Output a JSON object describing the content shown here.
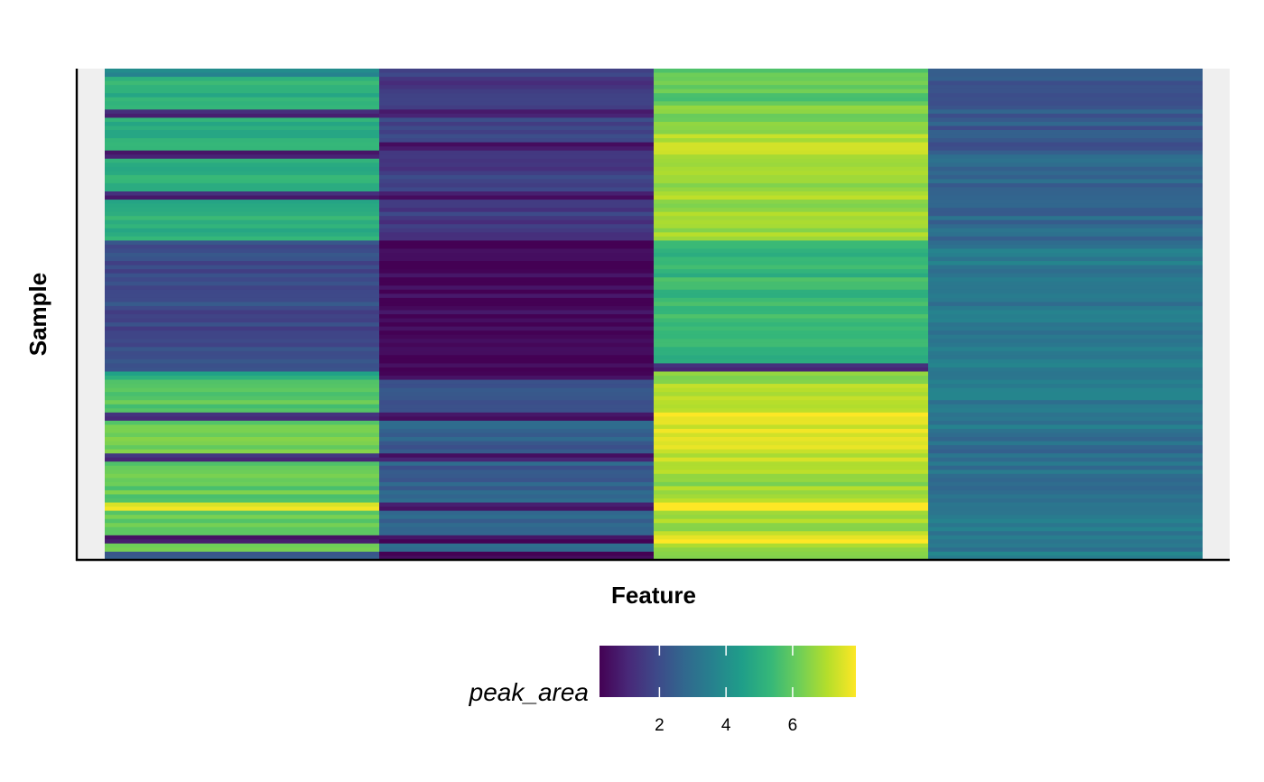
{
  "colors": {
    "panel_background": "#efefef",
    "viridis": [
      "#440154",
      "#482878",
      "#3e4989",
      "#31688e",
      "#26828e",
      "#1f9e89",
      "#35b779",
      "#6ece58",
      "#b5de2b",
      "#fde725"
    ]
  },
  "chart_data": {
    "type": "heatmap",
    "title": "",
    "xlabel": "Feature",
    "ylabel": "Sample",
    "x_ticks_shown": false,
    "y_ticks_shown": false,
    "grid": false,
    "n_features": 4,
    "n_samples": 120,
    "feature_profiles": [
      {
        "segments": [
          [
            0,
            2,
            3.8
          ],
          [
            2,
            10,
            5.0
          ],
          [
            10,
            12,
            1.0
          ],
          [
            12,
            20,
            5.0
          ],
          [
            20,
            22,
            1.0
          ],
          [
            22,
            30,
            5.0
          ],
          [
            30,
            32,
            1.0
          ],
          [
            32,
            42,
            5.0
          ],
          [
            42,
            74,
            2.0
          ],
          [
            74,
            76,
            5.0
          ],
          [
            76,
            84,
            5.8
          ],
          [
            84,
            86,
            1.0
          ],
          [
            86,
            94,
            6.2
          ],
          [
            94,
            96,
            1.0
          ],
          [
            96,
            106,
            6.0
          ],
          [
            106,
            108,
            7.5
          ],
          [
            108,
            114,
            6.0
          ],
          [
            114,
            116,
            1.0
          ],
          [
            116,
            118,
            6.0
          ],
          [
            118,
            120,
            2.0
          ]
        ]
      },
      {
        "segments": [
          [
            0,
            10,
            1.6
          ],
          [
            10,
            12,
            0.6
          ],
          [
            12,
            18,
            1.9
          ],
          [
            18,
            20,
            0.6
          ],
          [
            20,
            30,
            1.6
          ],
          [
            30,
            32,
            0.6
          ],
          [
            32,
            42,
            1.6
          ],
          [
            42,
            74,
            0.3
          ],
          [
            74,
            76,
            0.6
          ],
          [
            76,
            84,
            2.2
          ],
          [
            84,
            86,
            0.6
          ],
          [
            86,
            94,
            2.5
          ],
          [
            94,
            96,
            0.6
          ],
          [
            96,
            106,
            2.5
          ],
          [
            106,
            108,
            0.6
          ],
          [
            108,
            114,
            2.6
          ],
          [
            114,
            116,
            0.6
          ],
          [
            116,
            118,
            2.6
          ],
          [
            118,
            120,
            0.3
          ]
        ]
      },
      {
        "segments": [
          [
            0,
            8,
            5.9
          ],
          [
            8,
            16,
            6.3
          ],
          [
            16,
            26,
            7.1
          ],
          [
            26,
            42,
            6.8
          ],
          [
            42,
            72,
            5.3
          ],
          [
            72,
            74,
            1.0
          ],
          [
            74,
            84,
            6.8
          ],
          [
            84,
            92,
            7.5
          ],
          [
            92,
            98,
            7.3
          ],
          [
            98,
            106,
            6.7
          ],
          [
            106,
            108,
            7.7
          ],
          [
            108,
            114,
            6.9
          ],
          [
            114,
            116,
            7.7
          ],
          [
            116,
            120,
            6.8
          ]
        ]
      },
      {
        "segments": [
          [
            0,
            20,
            2.4
          ],
          [
            20,
            42,
            2.8
          ],
          [
            42,
            90,
            3.3
          ],
          [
            90,
            110,
            3.0
          ],
          [
            110,
            120,
            3.4
          ]
        ]
      }
    ],
    "legend": {
      "title": "peak_area",
      "position": "bottom",
      "scale": "viridis",
      "limits": [
        0.2,
        7.9
      ],
      "ticks": [
        2,
        4,
        6
      ],
      "tick_labels": [
        "2",
        "4",
        "6"
      ]
    }
  }
}
